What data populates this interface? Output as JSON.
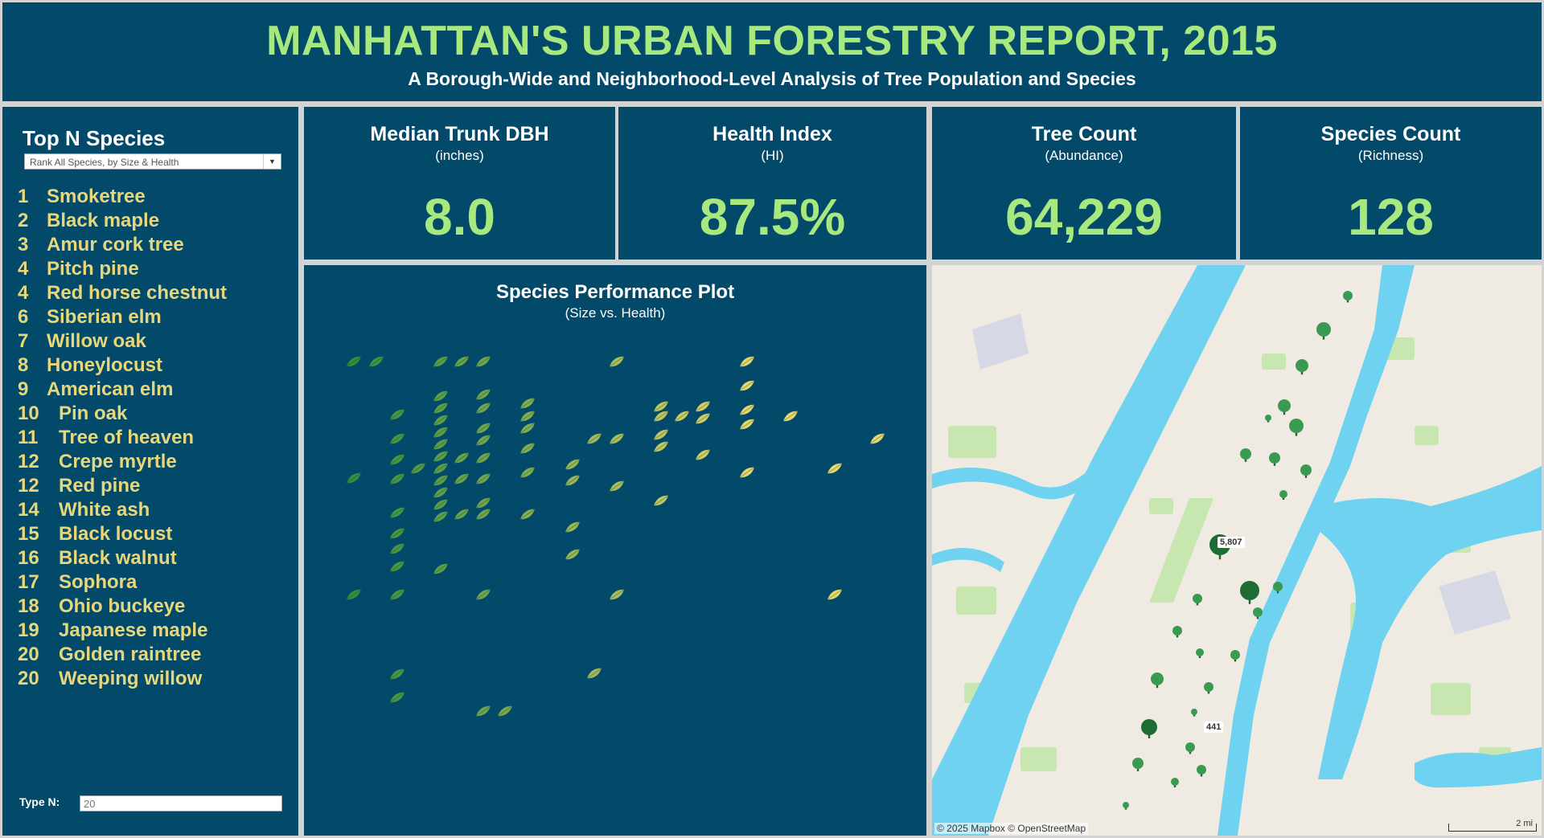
{
  "header": {
    "title": "MANHATTAN'S URBAN FORESTRY REPORT, 2015",
    "subtitle": "A Borough-Wide and Neighborhood-Level Analysis of Tree Population and Species"
  },
  "left_panel": {
    "heading": "Top N Species",
    "dropdown_value": "Rank All Species, by Size & Health",
    "type_n_label": "Type N:",
    "type_n_value": "20",
    "species": [
      {
        "rank": "1",
        "name": "Smoketree"
      },
      {
        "rank": "2",
        "name": "Black maple"
      },
      {
        "rank": "3",
        "name": "Amur cork tree"
      },
      {
        "rank": "4",
        "name": "Pitch pine"
      },
      {
        "rank": "4",
        "name": "Red horse chestnut"
      },
      {
        "rank": "6",
        "name": "Siberian elm"
      },
      {
        "rank": "7",
        "name": "Willow oak"
      },
      {
        "rank": "8",
        "name": "Honeylocust"
      },
      {
        "rank": "9",
        "name": "American elm"
      },
      {
        "rank": "10",
        "name": "Pin oak"
      },
      {
        "rank": "11",
        "name": "Tree of heaven"
      },
      {
        "rank": "12",
        "name": "Crepe myrtle"
      },
      {
        "rank": "12",
        "name": "Red pine"
      },
      {
        "rank": "14",
        "name": "White ash"
      },
      {
        "rank": "15",
        "name": "Black locust"
      },
      {
        "rank": "16",
        "name": "Black walnut"
      },
      {
        "rank": "17",
        "name": "Sophora"
      },
      {
        "rank": "18",
        "name": "Ohio buckeye"
      },
      {
        "rank": "19",
        "name": "Japanese maple"
      },
      {
        "rank": "20",
        "name": "Golden raintree"
      },
      {
        "rank": "20",
        "name": "Weeping willow"
      }
    ]
  },
  "kpis": {
    "dbh": {
      "title": "Median Trunk DBH",
      "sub": "(inches)",
      "value": "8.0"
    },
    "health": {
      "title": "Health Index",
      "sub": "(HI)",
      "value": "87.5%"
    },
    "trees": {
      "title": "Tree Count",
      "sub": "(Abundance)",
      "value": "64,229"
    },
    "species": {
      "title": "Species Count",
      "sub": "(Richness)",
      "value": "128"
    }
  },
  "scatter": {
    "title": "Species Performance Plot",
    "subtitle": "(Size vs. Health)"
  },
  "map": {
    "labels": [
      "5,807",
      "441"
    ],
    "attribution": "© 2025 Mapbox © OpenStreetMap",
    "scale": "2 mi"
  },
  "colors": {
    "panel_bg": "#02496a",
    "accent_green": "#a7e97e",
    "species_gold": "#e8d77a",
    "water": "#6fd2f0",
    "tree_green": "#1e7a3a"
  },
  "icons": {
    "plot_marker": "leaf-icon",
    "map_marker": "tree-icon"
  }
}
